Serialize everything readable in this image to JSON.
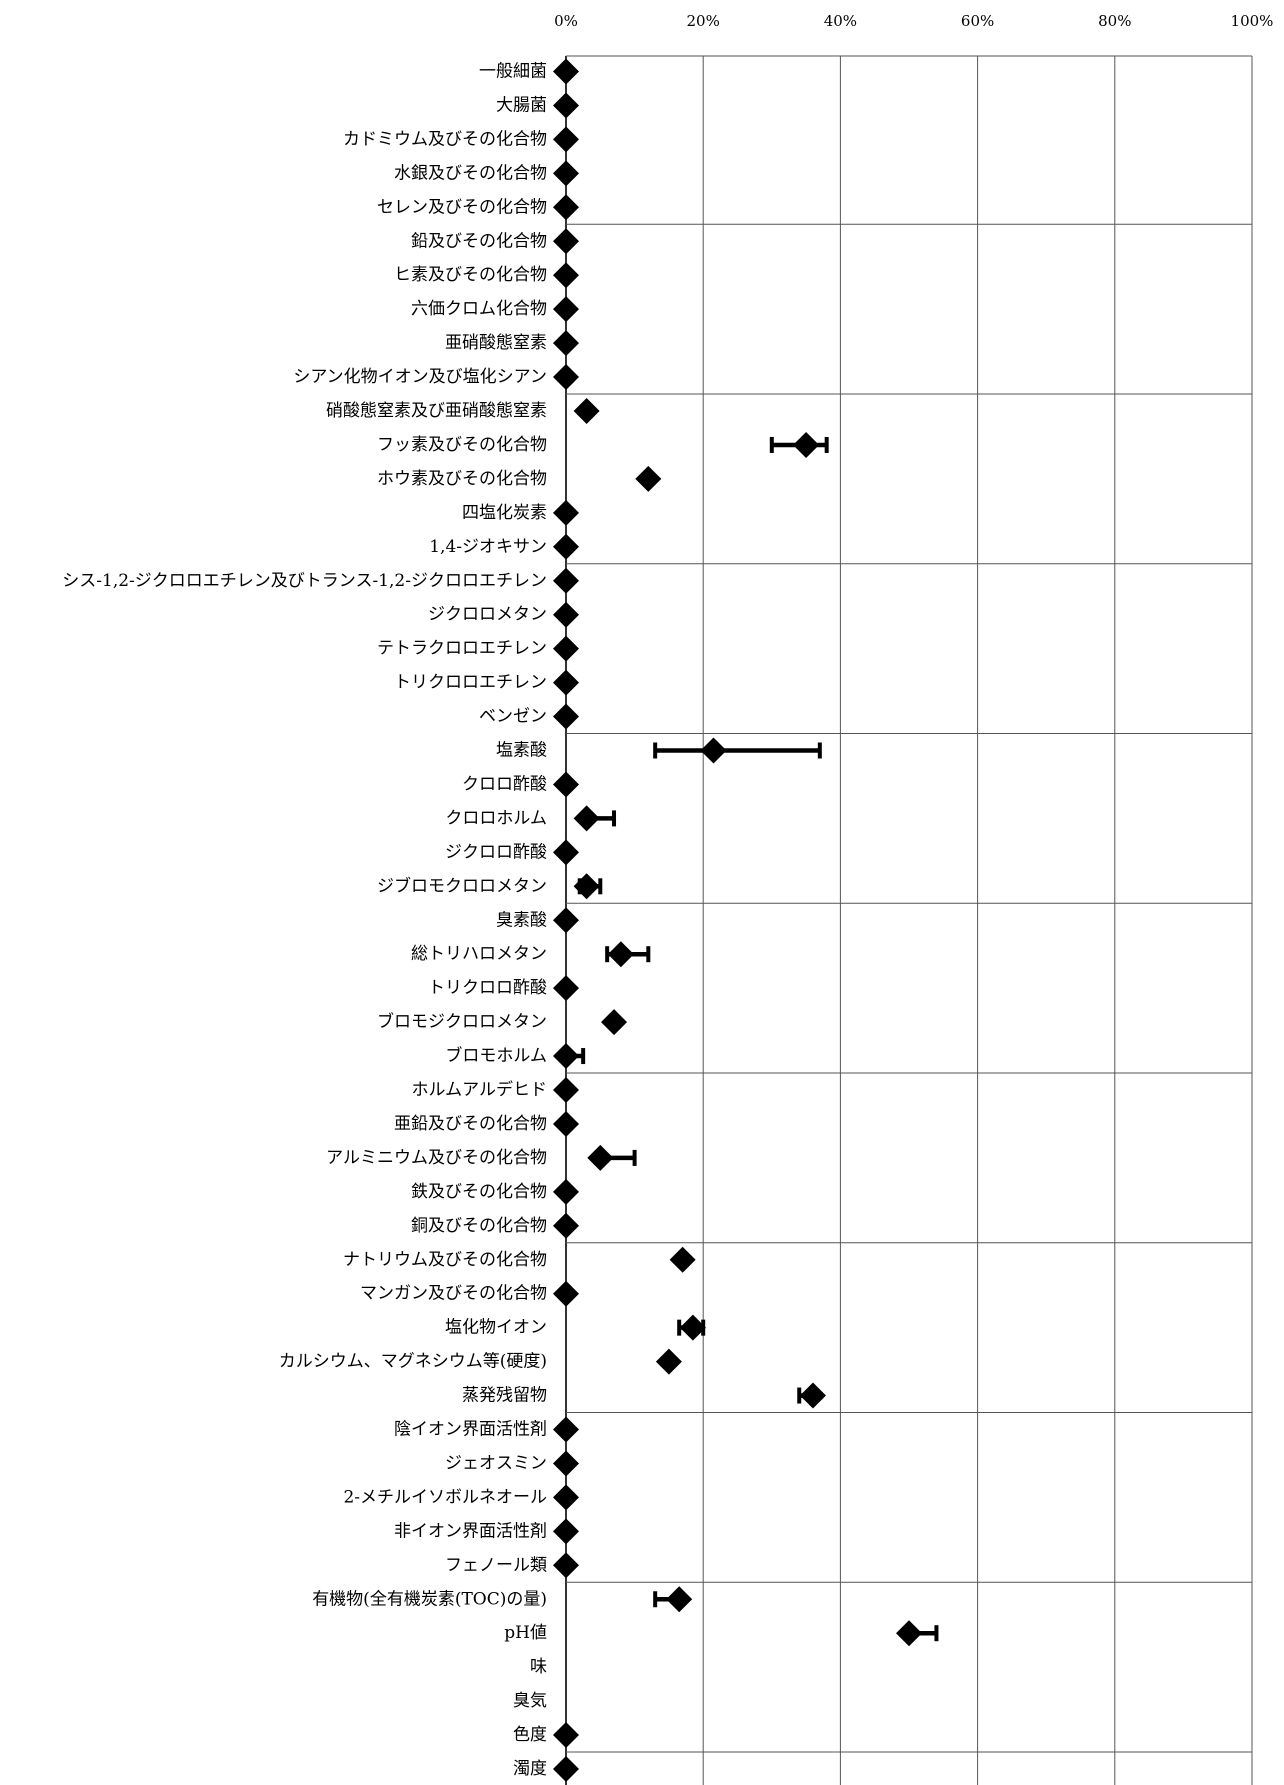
{
  "chart_data": {
    "type": "scatter",
    "orientation": "horizontal",
    "xlim": [
      0,
      100
    ],
    "x_ticks": [
      0,
      20,
      40,
      60,
      80,
      100
    ],
    "x_tick_labels": [
      "0%",
      "20%",
      "40%",
      "60%",
      "80%",
      "100%"
    ],
    "x_axis_position": "top",
    "grid": true,
    "marker": "diamond",
    "marker_color": "#000000",
    "error_bar_color": "#000000",
    "categories": [
      "一般細菌",
      "大腸菌",
      "カドミウム及びその化合物",
      "水銀及びその化合物",
      "セレン及びその化合物",
      "鉛及びその化合物",
      "ヒ素及びその化合物",
      "六価クロム化合物",
      "亜硝酸態窒素",
      "シアン化物イオン及び塩化シアン",
      "硝酸態窒素及び亜硝酸態窒素",
      "フッ素及びその化合物",
      "ホウ素及びその化合物",
      "四塩化炭素",
      "1,4-ジオキサン",
      "シス-1,2-ジクロロエチレン及びトランス-1,2-ジクロロエチレン",
      "ジクロロメタン",
      "テトラクロロエチレン",
      "トリクロロエチレン",
      "ベンゼン",
      "塩素酸",
      "クロロ酢酸",
      "クロロホルム",
      "ジクロロ酢酸",
      "ジブロモクロロメタン",
      "臭素酸",
      "総トリハロメタン",
      "トリクロロ酢酸",
      "ブロモジクロロメタン",
      "ブロモホルム",
      "ホルムアルデヒド",
      "亜鉛及びその化合物",
      "アルミニウム及びその化合物",
      "鉄及びその化合物",
      "銅及びその化合物",
      "ナトリウム及びその化合物",
      "マンガン及びその化合物",
      "塩化物イオン",
      "カルシウム、マグネシウム等(硬度)",
      "蒸発残留物",
      "陰イオン界面活性剤",
      "ジェオスミン",
      "2-メチルイソボルネオール",
      "非イオン界面活性剤",
      "フェノール類",
      "有機物(全有機炭素(TOC)の量)",
      "pH値",
      "味",
      "臭気",
      "色度",
      "濁度"
    ],
    "values": [
      0,
      0,
      0,
      0,
      0,
      0,
      0,
      0,
      0,
      0,
      3,
      35,
      12,
      0,
      0,
      0,
      0,
      0,
      0,
      0,
      21.5,
      0,
      3,
      0,
      3,
      0,
      8,
      0,
      7,
      0,
      0,
      0,
      5,
      0,
      0,
      17,
      0,
      18.5,
      15,
      36,
      0,
      0,
      0,
      0,
      0,
      16.5,
      50,
      null,
      null,
      0,
      0
    ],
    "error_ranges": [
      null,
      null,
      null,
      null,
      null,
      null,
      null,
      null,
      null,
      null,
      null,
      [
        30,
        38
      ],
      null,
      null,
      null,
      null,
      null,
      null,
      null,
      null,
      [
        13,
        37
      ],
      null,
      [
        3,
        7
      ],
      null,
      [
        2,
        5
      ],
      null,
      [
        6,
        12
      ],
      null,
      null,
      [
        0,
        2.5
      ],
      null,
      null,
      [
        5,
        10
      ],
      null,
      null,
      null,
      null,
      [
        16.5,
        20
      ],
      null,
      [
        34,
        36
      ],
      null,
      null,
      null,
      null,
      null,
      [
        13,
        16.5
      ],
      [
        50,
        54
      ],
      null,
      null,
      null,
      null
    ]
  }
}
